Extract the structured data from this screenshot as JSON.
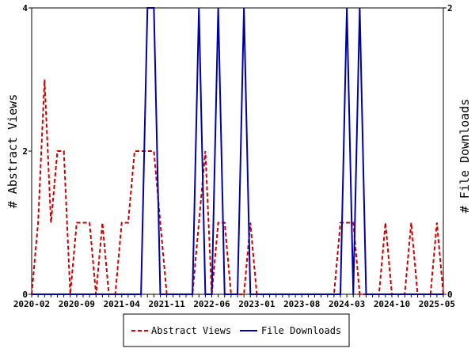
{
  "chart_data": {
    "type": "line",
    "x_dates": [
      "2020-02",
      "2020-03",
      "2020-04",
      "2020-05",
      "2020-06",
      "2020-07",
      "2020-08",
      "2020-09",
      "2020-10",
      "2020-11",
      "2020-12",
      "2021-01",
      "2021-02",
      "2021-03",
      "2021-04",
      "2021-05",
      "2021-06",
      "2021-07",
      "2021-08",
      "2021-09",
      "2021-10",
      "2021-11",
      "2021-12",
      "2022-01",
      "2022-02",
      "2022-03",
      "2022-04",
      "2022-05",
      "2022-06",
      "2022-07",
      "2022-08",
      "2022-09",
      "2022-10",
      "2022-11",
      "2022-12",
      "2023-01",
      "2023-02",
      "2023-03",
      "2023-04",
      "2023-05",
      "2023-06",
      "2023-07",
      "2023-08",
      "2023-09",
      "2023-10",
      "2023-11",
      "2023-12",
      "2024-01",
      "2024-02",
      "2024-03",
      "2024-04",
      "2024-05",
      "2024-06",
      "2024-07",
      "2024-08",
      "2024-09",
      "2024-10",
      "2024-11",
      "2024-12",
      "2025-01",
      "2025-02",
      "2025-03",
      "2025-04",
      "2025-05",
      "2025-06"
    ],
    "x_tick_labels": [
      "2020-02",
      "2020-09",
      "2021-04",
      "2021-11",
      "2022-06",
      "2023-01",
      "2023-08",
      "2024-03",
      "2024-10",
      "2025-05"
    ],
    "y_left": {
      "label": "# Abstract Views",
      "range": [
        0,
        4
      ],
      "ticks": [
        "0",
        "2",
        "4"
      ]
    },
    "y_right": {
      "label": "# File Downloads",
      "range": [
        0,
        2
      ],
      "ticks": [
        "0",
        "2"
      ]
    },
    "series": [
      {
        "name": "Abstract Views",
        "axis": "left",
        "color": "#cc0000",
        "style": "dashed",
        "values": [
          0,
          1,
          3,
          1,
          2,
          2,
          0,
          1,
          1,
          1,
          0,
          1,
          0,
          0,
          1,
          1,
          2,
          2,
          2,
          2,
          1,
          0,
          0,
          0,
          0,
          0,
          1,
          2,
          0,
          1,
          1,
          0,
          0,
          0,
          1,
          0,
          0,
          0,
          0,
          0,
          0,
          0,
          0,
          0,
          0,
          0,
          0,
          0,
          1,
          1,
          1,
          0,
          0,
          0,
          0,
          1,
          0,
          0,
          0,
          1,
          0,
          0,
          0,
          1,
          0
        ]
      },
      {
        "name": "File Downloads",
        "axis": "right",
        "color": "#0000aa",
        "style": "solid",
        "values": [
          0,
          0,
          0,
          0,
          0,
          0,
          0,
          0,
          0,
          0,
          0,
          0,
          0,
          0,
          0,
          0,
          0,
          0,
          2,
          2,
          0,
          0,
          0,
          0,
          0,
          0,
          2,
          0,
          0,
          2,
          0,
          0,
          0,
          2,
          0,
          0,
          0,
          0,
          0,
          0,
          0,
          0,
          0,
          0,
          0,
          0,
          0,
          0,
          0,
          2,
          0,
          2,
          0,
          0,
          0,
          0,
          0,
          0,
          0,
          0,
          0,
          0,
          0,
          0,
          0
        ]
      }
    ],
    "grid": false,
    "legend": {
      "position": "bottom-center",
      "entries": [
        "Abstract Views",
        "File Downloads"
      ]
    }
  }
}
